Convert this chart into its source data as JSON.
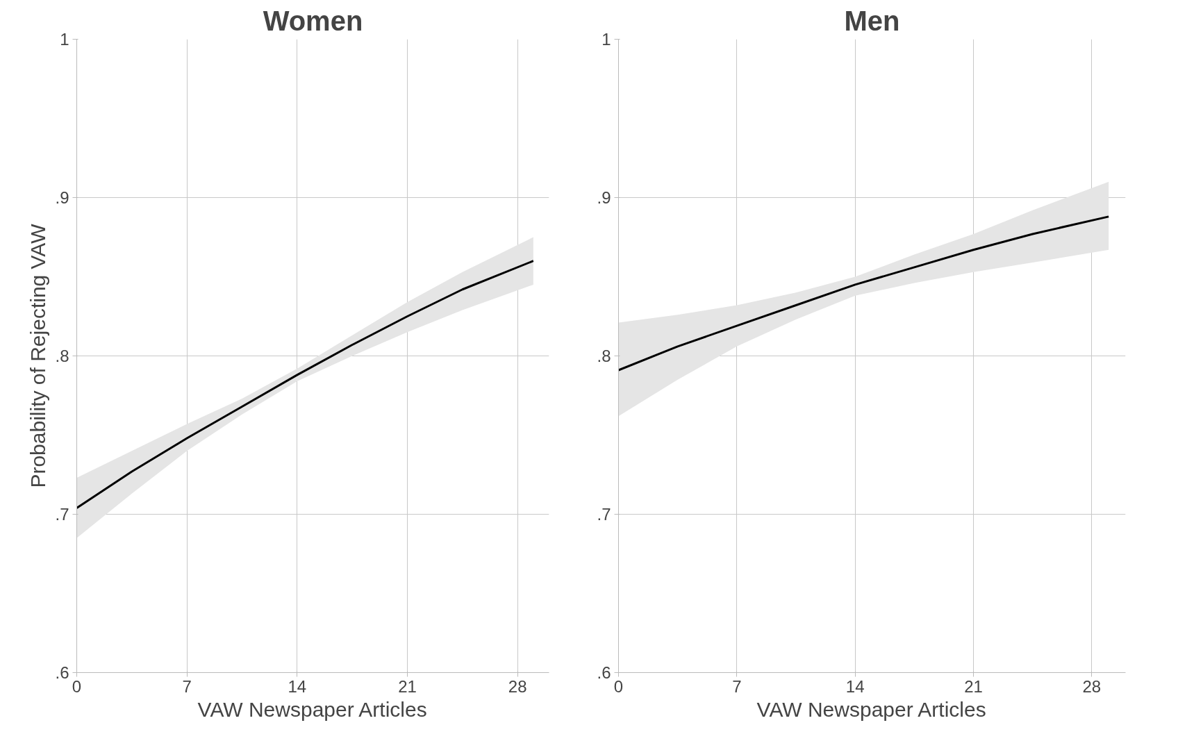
{
  "chart_data": [
    {
      "type": "line",
      "title": "Women",
      "xlabel": "VAW Newspaper Articles",
      "ylabel": "Probability of Rejecting VAW",
      "x": [
        0,
        3.5,
        7,
        10.5,
        14,
        17.5,
        21,
        24.5,
        29
      ],
      "xlim": [
        0,
        30
      ],
      "ylim": [
        0.6,
        1
      ],
      "xticks": [
        0,
        7,
        14,
        21,
        28
      ],
      "yticks": [
        {
          "value": 0.6,
          "label": ".6"
        },
        {
          "value": 0.7,
          "label": ".7"
        },
        {
          "value": 0.8,
          "label": ".8"
        },
        {
          "value": 0.9,
          "label": ".9"
        },
        {
          "value": 1,
          "label": "1"
        }
      ],
      "grid": true,
      "series": [
        {
          "color": "#000000",
          "values": [
            0.704,
            0.727,
            0.748,
            0.768,
            0.788,
            0.807,
            0.825,
            0.842,
            0.86
          ],
          "lower": [
            0.685,
            0.713,
            0.74,
            0.763,
            0.784,
            0.8,
            0.815,
            0.829,
            0.845
          ],
          "upper": [
            0.723,
            0.74,
            0.757,
            0.773,
            0.792,
            0.813,
            0.834,
            0.853,
            0.875
          ]
        }
      ]
    },
    {
      "type": "line",
      "title": "Men",
      "xlabel": "VAW Newspaper Articles",
      "x": [
        0,
        3.5,
        7,
        10.5,
        14,
        17.5,
        21,
        24.5,
        29
      ],
      "xlim": [
        0,
        30
      ],
      "ylim": [
        0.6,
        1
      ],
      "xticks": [
        0,
        7,
        14,
        21,
        28
      ],
      "yticks": [
        {
          "value": 0.6,
          "label": ".6"
        },
        {
          "value": 0.7,
          "label": ".7"
        },
        {
          "value": 0.8,
          "label": ".8"
        },
        {
          "value": 0.9,
          "label": ".9"
        },
        {
          "value": 1,
          "label": "1"
        }
      ],
      "grid": true,
      "series": [
        {
          "color": "#000000",
          "values": [
            0.791,
            0.806,
            0.819,
            0.832,
            0.845,
            0.856,
            0.867,
            0.877,
            0.888
          ],
          "lower": [
            0.762,
            0.785,
            0.806,
            0.823,
            0.838,
            0.846,
            0.853,
            0.859,
            0.867
          ],
          "upper": [
            0.821,
            0.826,
            0.832,
            0.84,
            0.85,
            0.864,
            0.877,
            0.892,
            0.91
          ]
        }
      ]
    }
  ]
}
